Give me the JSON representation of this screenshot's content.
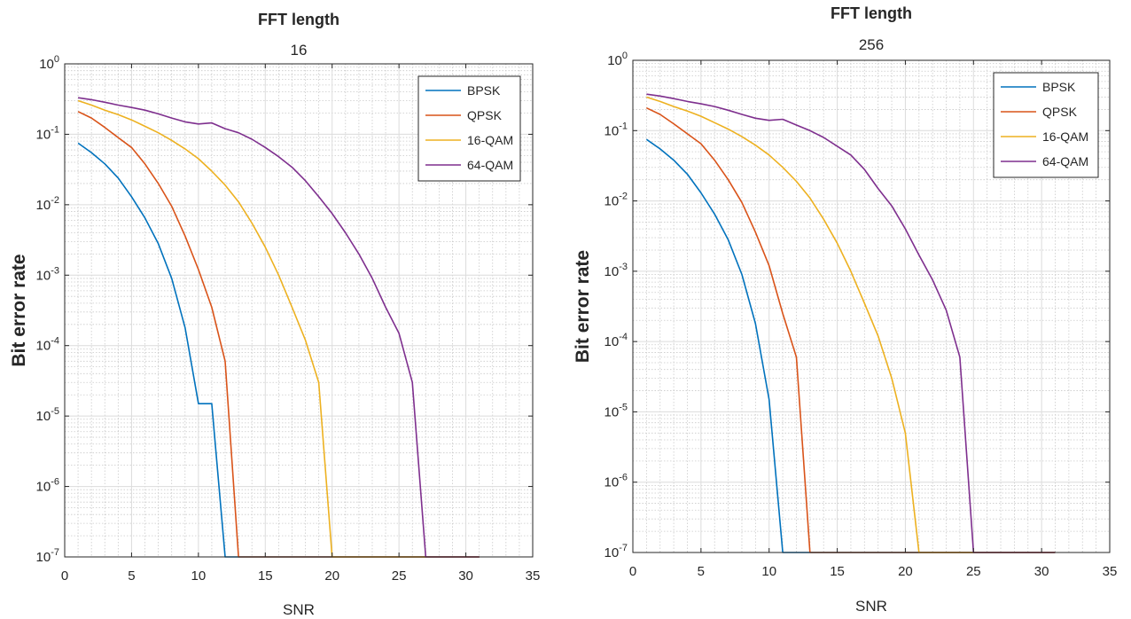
{
  "chart_data": [
    {
      "type": "line",
      "title": "FFT length",
      "subtitle": "16",
      "xlabel": "SNR",
      "ylabel": "Bit error rate",
      "xlim": [
        0,
        35
      ],
      "ylim": [
        1e-07,
        1
      ],
      "yscale": "log",
      "x_ticks": [
        0,
        5,
        10,
        15,
        20,
        25,
        30,
        35
      ],
      "y_tick_labels": [
        {
          "base": "10",
          "exp": "-7"
        },
        {
          "base": "10",
          "exp": "-6"
        },
        {
          "base": "10",
          "exp": "-5"
        },
        {
          "base": "10",
          "exp": "-4"
        },
        {
          "base": "10",
          "exp": "-3"
        },
        {
          "base": "10",
          "exp": "-2"
        },
        {
          "base": "10",
          "exp": "-1"
        },
        {
          "base": "10",
          "exp": "0"
        }
      ],
      "grid": "major and minor",
      "legend_position": "top-right",
      "series": [
        {
          "name": "BPSK",
          "color": "#0072BD",
          "x": [
            1,
            2,
            3,
            4,
            5,
            6,
            7,
            8,
            9,
            10,
            11,
            12,
            13,
            14,
            15,
            16,
            17,
            18,
            19,
            20,
            21,
            22,
            23,
            24,
            25,
            26,
            27,
            28,
            29,
            30,
            31
          ],
          "y": [
            0.075,
            0.055,
            0.038,
            0.024,
            0.013,
            0.0065,
            0.0028,
            0.0009,
            0.00018,
            1.5e-05,
            1.5e-05,
            1e-07,
            1e-07,
            1e-07,
            1e-07,
            1e-07,
            1e-07,
            1e-07,
            1e-07,
            1e-07,
            1e-07,
            1e-07,
            1e-07,
            1e-07,
            1e-07,
            1e-07,
            1e-07,
            1e-07,
            1e-07,
            1e-07,
            1e-07
          ]
        },
        {
          "name": "QPSK",
          "color": "#D95319",
          "x": [
            1,
            2,
            3,
            4,
            5,
            6,
            7,
            8,
            9,
            10,
            11,
            12,
            13,
            14,
            15,
            16,
            17,
            18,
            19,
            20,
            21,
            22,
            23,
            24,
            25,
            26,
            27,
            28,
            29,
            30,
            31
          ],
          "y": [
            0.21,
            0.17,
            0.125,
            0.09,
            0.065,
            0.038,
            0.02,
            0.0095,
            0.0036,
            0.0012,
            0.00035,
            6e-05,
            1e-07,
            1e-07,
            1e-07,
            1e-07,
            1e-07,
            1e-07,
            1e-07,
            1e-07,
            1e-07,
            1e-07,
            1e-07,
            1e-07,
            1e-07,
            1e-07,
            1e-07,
            1e-07,
            1e-07,
            1e-07,
            1e-07
          ]
        },
        {
          "name": "16-QAM",
          "color": "#EDB120",
          "x": [
            1,
            2,
            3,
            4,
            5,
            6,
            7,
            8,
            9,
            10,
            11,
            12,
            13,
            14,
            15,
            16,
            17,
            18,
            19,
            20,
            21,
            22,
            23,
            24,
            25,
            26,
            27,
            28,
            29,
            30,
            31
          ],
          "y": [
            0.3,
            0.26,
            0.22,
            0.19,
            0.16,
            0.13,
            0.105,
            0.082,
            0.062,
            0.045,
            0.03,
            0.019,
            0.011,
            0.0055,
            0.0025,
            0.001,
            0.00035,
            0.00012,
            3e-05,
            1e-07,
            1e-07,
            1e-07,
            1e-07,
            1e-07,
            1e-07,
            1e-07,
            1e-07,
            1e-07,
            1e-07,
            1e-07,
            1e-07
          ]
        },
        {
          "name": "64-QAM",
          "color": "#7E2F8E",
          "x": [
            1,
            2,
            3,
            4,
            5,
            6,
            7,
            8,
            9,
            10,
            11,
            12,
            13,
            14,
            15,
            16,
            17,
            18,
            19,
            20,
            21,
            22,
            23,
            24,
            25,
            26,
            27,
            28,
            29,
            30,
            31
          ],
          "y": [
            0.33,
            0.31,
            0.285,
            0.26,
            0.24,
            0.22,
            0.195,
            0.17,
            0.15,
            0.14,
            0.145,
            0.12,
            0.105,
            0.085,
            0.065,
            0.048,
            0.034,
            0.022,
            0.013,
            0.0075,
            0.004,
            0.002,
            0.0009,
            0.00035,
            0.00015,
            3e-05,
            1e-07,
            1e-07,
            1e-07,
            1e-07,
            1e-07
          ]
        }
      ]
    },
    {
      "type": "line",
      "title": "FFT length",
      "subtitle": "256",
      "xlabel": "SNR",
      "ylabel": "Bit error rate",
      "xlim": [
        0,
        35
      ],
      "ylim": [
        1e-07,
        1
      ],
      "yscale": "log",
      "x_ticks": [
        0,
        5,
        10,
        15,
        20,
        25,
        30,
        35
      ],
      "y_tick_labels": [
        {
          "base": "10",
          "exp": "-7"
        },
        {
          "base": "10",
          "exp": "-6"
        },
        {
          "base": "10",
          "exp": "-5"
        },
        {
          "base": "10",
          "exp": "-4"
        },
        {
          "base": "10",
          "exp": "-3"
        },
        {
          "base": "10",
          "exp": "-2"
        },
        {
          "base": "10",
          "exp": "-1"
        },
        {
          "base": "10",
          "exp": "0"
        }
      ],
      "grid": "major and minor",
      "legend_position": "top-right",
      "series": [
        {
          "name": "BPSK",
          "color": "#0072BD",
          "x": [
            1,
            2,
            3,
            4,
            5,
            6,
            7,
            8,
            9,
            10,
            11,
            12,
            13,
            14,
            15,
            16,
            17,
            18,
            19,
            20,
            21,
            22,
            23,
            24,
            25,
            26,
            27,
            28,
            29,
            30,
            31
          ],
          "y": [
            0.075,
            0.055,
            0.038,
            0.024,
            0.013,
            0.0065,
            0.0028,
            0.0009,
            0.00018,
            1.5e-05,
            1e-07,
            1e-07,
            1e-07,
            1e-07,
            1e-07,
            1e-07,
            1e-07,
            1e-07,
            1e-07,
            1e-07,
            1e-07,
            1e-07,
            1e-07,
            1e-07,
            1e-07,
            1e-07,
            1e-07,
            1e-07,
            1e-07,
            1e-07,
            1e-07
          ]
        },
        {
          "name": "QPSK",
          "color": "#D95319",
          "x": [
            1,
            2,
            3,
            4,
            5,
            6,
            7,
            8,
            9,
            10,
            11,
            12,
            13,
            14,
            15,
            16,
            17,
            18,
            19,
            20,
            21,
            22,
            23,
            24,
            25,
            26,
            27,
            28,
            29,
            30,
            31
          ],
          "y": [
            0.21,
            0.17,
            0.125,
            0.09,
            0.065,
            0.038,
            0.02,
            0.0095,
            0.0036,
            0.0012,
            0.00025,
            6e-05,
            1e-07,
            1e-07,
            1e-07,
            1e-07,
            1e-07,
            1e-07,
            1e-07,
            1e-07,
            1e-07,
            1e-07,
            1e-07,
            1e-07,
            1e-07,
            1e-07,
            1e-07,
            1e-07,
            1e-07,
            1e-07,
            1e-07
          ]
        },
        {
          "name": "16-QAM",
          "color": "#EDB120",
          "x": [
            1,
            2,
            3,
            4,
            5,
            6,
            7,
            8,
            9,
            10,
            11,
            12,
            13,
            14,
            15,
            16,
            17,
            18,
            19,
            20,
            21,
            22,
            23,
            24,
            25,
            26,
            27,
            28,
            29,
            30,
            31
          ],
          "y": [
            0.3,
            0.26,
            0.22,
            0.19,
            0.16,
            0.13,
            0.105,
            0.082,
            0.062,
            0.045,
            0.03,
            0.019,
            0.011,
            0.0055,
            0.0025,
            0.001,
            0.00035,
            0.00012,
            3e-05,
            5e-06,
            1e-07,
            1e-07,
            1e-07,
            1e-07,
            1e-07,
            1e-07,
            1e-07,
            1e-07,
            1e-07,
            1e-07,
            1e-07
          ]
        },
        {
          "name": "64-QAM",
          "color": "#7E2F8E",
          "x": [
            1,
            2,
            3,
            4,
            5,
            6,
            7,
            8,
            9,
            10,
            11,
            12,
            13,
            14,
            15,
            16,
            17,
            18,
            19,
            20,
            21,
            22,
            23,
            24,
            25,
            26,
            27,
            28,
            29,
            30,
            31
          ],
          "y": [
            0.33,
            0.31,
            0.285,
            0.26,
            0.24,
            0.22,
            0.195,
            0.17,
            0.15,
            0.14,
            0.145,
            0.12,
            0.1,
            0.08,
            0.06,
            0.045,
            0.028,
            0.015,
            0.0085,
            0.004,
            0.0017,
            0.00075,
            0.00028,
            6e-05,
            1e-07,
            1e-07,
            1e-07,
            1e-07,
            1e-07,
            1e-07,
            1e-07
          ]
        }
      ]
    }
  ]
}
